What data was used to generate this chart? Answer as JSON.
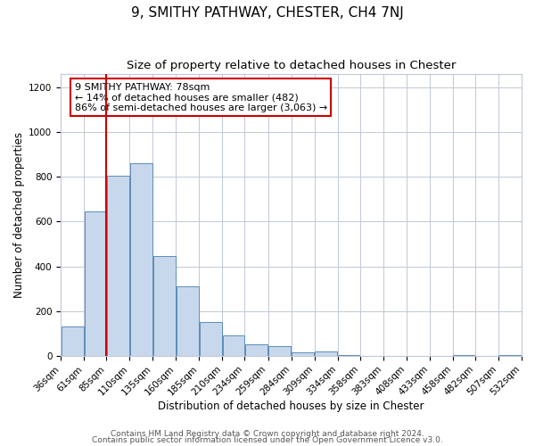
{
  "title1": "9, SMITHY PATHWAY, CHESTER, CH4 7NJ",
  "title2": "Size of property relative to detached houses in Chester",
  "xlabel": "Distribution of detached houses by size in Chester",
  "ylabel": "Number of detached properties",
  "bar_left_edges": [
    36,
    61,
    85,
    110,
    135,
    160,
    185,
    210,
    234,
    259,
    284,
    309,
    334,
    358,
    383,
    408,
    433,
    458,
    482,
    507
  ],
  "bar_widths": [
    25,
    24,
    25,
    25,
    25,
    25,
    25,
    24,
    25,
    25,
    25,
    25,
    24,
    25,
    25,
    25,
    25,
    24,
    25,
    25
  ],
  "bar_heights": [
    130,
    645,
    805,
    860,
    445,
    310,
    150,
    90,
    52,
    42,
    15,
    20,
    5,
    0,
    0,
    0,
    0,
    5,
    0,
    2
  ],
  "bar_color": "#c8d8ec",
  "bar_edgecolor": "#5b8db8",
  "x_tick_labels": [
    "36sqm",
    "61sqm",
    "85sqm",
    "110sqm",
    "135sqm",
    "160sqm",
    "185sqm",
    "210sqm",
    "234sqm",
    "259sqm",
    "284sqm",
    "309sqm",
    "334sqm",
    "358sqm",
    "383sqm",
    "408sqm",
    "433sqm",
    "458sqm",
    "482sqm",
    "507sqm",
    "532sqm"
  ],
  "ylim": [
    0,
    1260
  ],
  "yticks": [
    0,
    200,
    400,
    600,
    800,
    1000,
    1200
  ],
  "vline_x": 85,
  "vline_color": "#cc0000",
  "annotation_line1": "9 SMITHY PATHWAY: 78sqm",
  "annotation_line2": "← 14% of detached houses are smaller (482)",
  "annotation_line3": "86% of semi-detached houses are larger (3,063) →",
  "footer1": "Contains HM Land Registry data © Crown copyright and database right 2024.",
  "footer2": "Contains public sector information licensed under the Open Government Licence v3.0.",
  "background_color": "#ffffff",
  "grid_color": "#c0c8d8",
  "title1_fontsize": 11,
  "title2_fontsize": 9.5,
  "axis_label_fontsize": 8.5,
  "tick_fontsize": 7.5,
  "annotation_fontsize": 8,
  "footer_fontsize": 6.5
}
